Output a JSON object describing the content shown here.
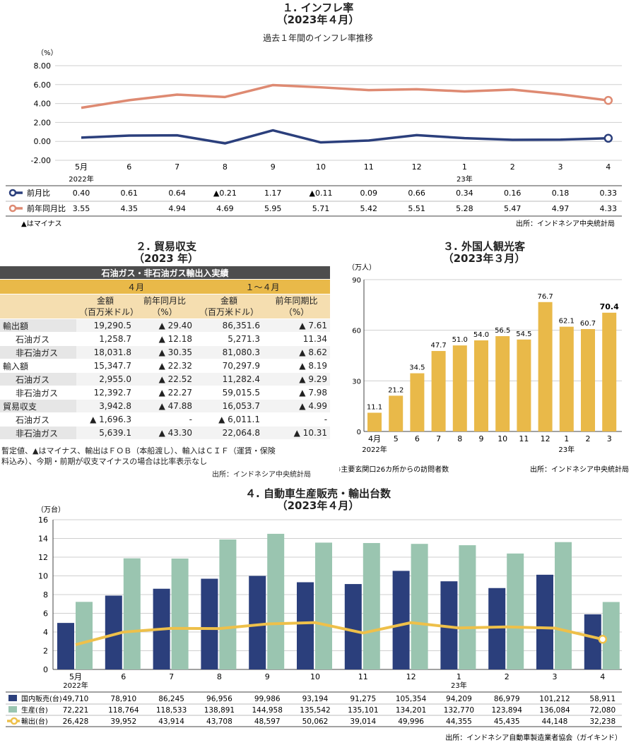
{
  "inflation": {
    "title": "１. インフレ率",
    "subtitle": "（2023年４月）",
    "desc": "過去１年間のインフレ率推移",
    "unit": "（%）",
    "minus_note": "▲はマイナス",
    "source": "出所：インドネシア中央統計局",
    "year_label_1": "2022年",
    "year_label_2": "23年",
    "colors": {
      "mom": "#2b3f7c",
      "yoy": "#de8a72"
    }
  },
  "trade": {
    "title": "２. 貿易収支",
    "subtitle": "（2023 年）",
    "header": "石油ガス・非石油ガス輸出入実績",
    "period_1": "４月",
    "period_2": "１～４月",
    "col_amount": "金額",
    "col_amount_unit": "（百万米ドル）",
    "col_yoy": "前年同月比",
    "col_yoy_unit": "（%）",
    "col_ytd_yoy": "前年同期比",
    "col_ytd_yoy_unit": "（%）",
    "rows": [
      {
        "label": "輸出額",
        "apr": "19,290.5",
        "apr_yoy": "▲ 29.40",
        "ytd": "86,351.6",
        "ytd_yoy": "▲ 7.61"
      },
      {
        "label": "石油ガス",
        "apr": "1,258.7",
        "apr_yoy": "▲ 12.18",
        "ytd": "5,271.3",
        "ytd_yoy": "11.34"
      },
      {
        "label": "非石油ガス",
        "apr": "18,031.8",
        "apr_yoy": "▲ 30.35",
        "ytd": "81,080.3",
        "ytd_yoy": "▲ 8.62"
      },
      {
        "label": "輸入額",
        "apr": "15,347.7",
        "apr_yoy": "▲ 22.32",
        "ytd": "70,297.9",
        "ytd_yoy": "▲ 8.19"
      },
      {
        "label": "石油ガス",
        "apr": "2,955.0",
        "apr_yoy": "▲ 22.52",
        "ytd": "11,282.4",
        "ytd_yoy": "▲ 9.29"
      },
      {
        "label": "非石油ガス",
        "apr": "12,392.7",
        "apr_yoy": "▲ 22.27",
        "ytd": "59,015.5",
        "ytd_yoy": "▲ 7.98"
      },
      {
        "label": "貿易収支",
        "apr": "3,942.8",
        "apr_yoy": "▲ 47.88",
        "ytd": "16,053.7",
        "ytd_yoy": "▲ 4.99"
      },
      {
        "label": "石油ガス",
        "apr": "▲ 1,696.3",
        "apr_yoy": "-",
        "ytd": "▲ 6,011.1",
        "ytd_yoy": "-"
      },
      {
        "label": "非石油ガス",
        "apr": "5,639.1",
        "apr_yoy": "▲ 43.30",
        "ytd": "22,064.8",
        "ytd_yoy": "▲ 10.31"
      }
    ],
    "note_1": "暫定値、▲はマイナス、輸出はＦＯＢ（本船渡し）、輸入はＣＩＦ（運賃・保険",
    "note_2": "料込み）、今期・前期が収支マイナスの場合は比率表示なし",
    "source": "出所：インドネシア中央統計局"
  },
  "tourists": {
    "title": "３. 外国人観光客",
    "subtitle": "（2023年３月）",
    "unit": "（万人）",
    "year_label_1": "2022年",
    "year_label_2": "23年",
    "note": "※主要玄関口26カ所からの訪問者数",
    "source": "出所：インドネシア中央統計局",
    "bar_color": "#e9b949"
  },
  "auto": {
    "title": "４. 自動車生産販売・輸出台数",
    "subtitle": "（2023年４月）",
    "unit": "（万台）",
    "year_label_1": "2022年",
    "year_label_2": "23年",
    "source": "出所：インドネシア自動車製造業者協会（ガイキンド）",
    "colors": {
      "domestic": "#2b3f7c",
      "production": "#9ac5b0",
      "export": "#eec04a"
    }
  },
  "chart_data": [
    {
      "type": "line",
      "categories": [
        "5月",
        "6",
        "7",
        "8",
        "9",
        "10",
        "11",
        "12",
        "1",
        "2",
        "3",
        "4"
      ],
      "ylim": [
        -2,
        8
      ],
      "yticks": [
        "8.00",
        "6.00",
        "4.00",
        "2.00",
        "0.00",
        "-2.00"
      ],
      "series": [
        {
          "name": "前月比",
          "values": [
            0.4,
            0.61,
            0.64,
            -0.21,
            1.17,
            -0.11,
            0.09,
            0.66,
            0.34,
            0.16,
            0.18,
            0.33
          ],
          "labels": [
            "0.40",
            "0.61",
            "0.64",
            "▲0.21",
            "1.17",
            "▲0.11",
            "0.09",
            "0.66",
            "0.34",
            "0.16",
            "0.18",
            "0.33"
          ]
        },
        {
          "name": "前年同月比",
          "values": [
            3.55,
            4.35,
            4.94,
            4.69,
            5.95,
            5.71,
            5.42,
            5.51,
            5.28,
            5.47,
            4.97,
            4.33
          ],
          "labels": [
            "3.55",
            "4.35",
            "4.94",
            "4.69",
            "5.95",
            "5.71",
            "5.42",
            "5.51",
            "5.28",
            "5.47",
            "4.97",
            "4.33"
          ]
        }
      ]
    },
    {
      "type": "bar",
      "categories": [
        "4月",
        "5",
        "6",
        "7",
        "8",
        "9",
        "10",
        "11",
        "12",
        "1",
        "2",
        "3"
      ],
      "values": [
        11.1,
        21.2,
        34.5,
        47.7,
        51.0,
        54.0,
        56.5,
        54.5,
        76.7,
        62.1,
        60.7,
        70.4
      ],
      "labels": [
        "11.1",
        "21.2",
        "34.5",
        "47.7",
        "51.0",
        "54.0",
        "56.5",
        "54.5",
        "76.7",
        "62.1",
        "60.7",
        "70.4"
      ],
      "ylim": [
        0,
        90
      ],
      "yticks": [
        "90",
        "60",
        "30",
        "0"
      ]
    },
    {
      "type": "bar",
      "categories": [
        "5月",
        "6",
        "7",
        "8",
        "9",
        "10",
        "11",
        "12",
        "1",
        "2",
        "3",
        "4"
      ],
      "ylim": [
        0,
        16
      ],
      "yticks": [
        "16",
        "14",
        "12",
        "10",
        "8",
        "6",
        "4",
        "2",
        "0"
      ],
      "series": [
        {
          "name": "国内販売(台)",
          "kind": "bar",
          "values": [
            49710,
            78910,
            86245,
            96956,
            99986,
            93194,
            91275,
            105354,
            94209,
            86979,
            101212,
            58911
          ],
          "labels": [
            "49,710",
            "78,910",
            "86,245",
            "96,956",
            "99,986",
            "93,194",
            "91,275",
            "105,354",
            "94,209",
            "86,979",
            "101,212",
            "58,911"
          ]
        },
        {
          "name": "生産(台)",
          "kind": "bar",
          "values": [
            72221,
            118764,
            118533,
            138891,
            144958,
            135542,
            135101,
            134201,
            132770,
            123894,
            136084,
            72080
          ],
          "labels": [
            "72,221",
            "118,764",
            "118,533",
            "138,891",
            "144,958",
            "135,542",
            "135,101",
            "134,201",
            "132,770",
            "123,894",
            "136,084",
            "72,080"
          ]
        },
        {
          "name": "輸出(台)",
          "kind": "line",
          "values": [
            26428,
            39952,
            43914,
            43708,
            48597,
            50062,
            39014,
            49996,
            44355,
            45435,
            44148,
            32238
          ],
          "labels": [
            "26,428",
            "39,952",
            "43,914",
            "43,708",
            "48,597",
            "50,062",
            "39,014",
            "49,996",
            "44,355",
            "45,435",
            "44,148",
            "32,238"
          ]
        }
      ]
    }
  ]
}
